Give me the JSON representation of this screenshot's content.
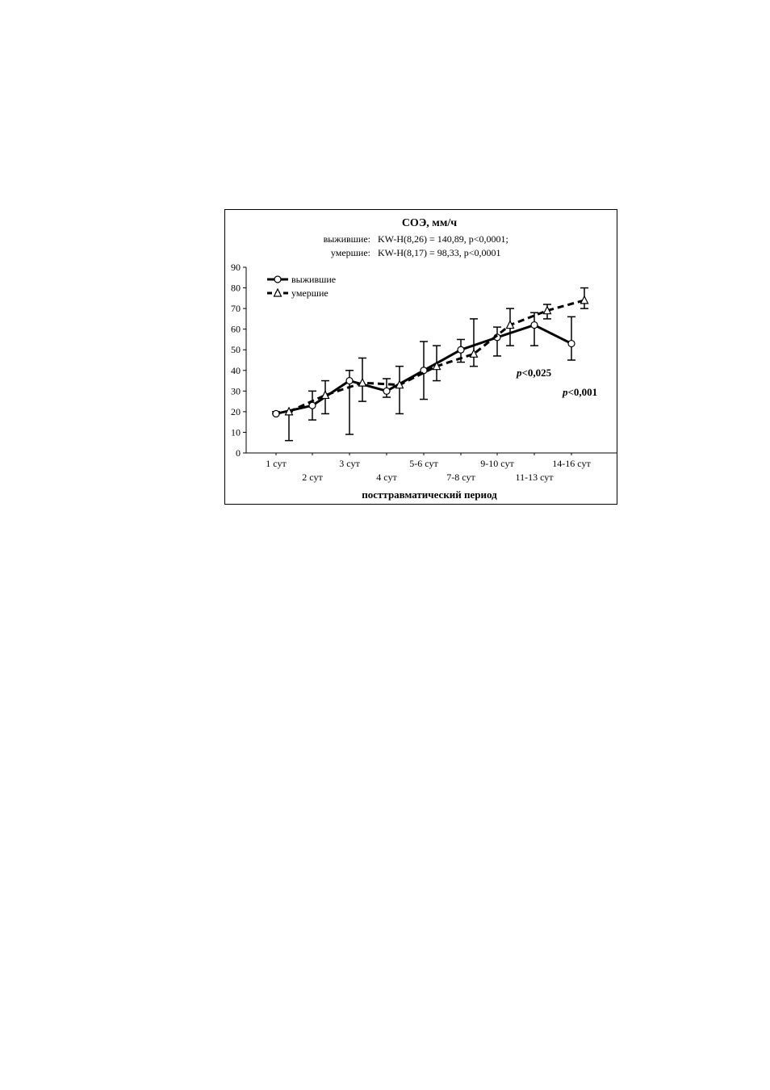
{
  "chart_data": {
    "type": "line",
    "title": "СОЭ, мм/ч",
    "subtitle_lines": [
      {
        "label": "выжившие:",
        "stat": "KW-H(8,26) = 140,89, p<0,0001;"
      },
      {
        "label": "умершие:",
        "stat": "KW-H(8,17) = 98,33, p<0,0001"
      }
    ],
    "xlabel": "посттравматический период",
    "ylabel": "",
    "ylim": [
      0,
      90
    ],
    "yticks": [
      0,
      10,
      20,
      30,
      40,
      50,
      60,
      70,
      80,
      90
    ],
    "grid": false,
    "legend_position": "top-left",
    "categories": [
      "1 сут",
      "2 сут",
      "3 сут",
      "4 сут",
      "5-6 сут",
      "7-8 сут",
      "9-10 сут",
      "11-13 сут",
      "14-16 сут"
    ],
    "series": [
      {
        "name": "выжившие",
        "marker": "circle",
        "line_style": "solid",
        "color": "#000000",
        "values": [
          19,
          23,
          35,
          30,
          40,
          50,
          56,
          62,
          53
        ],
        "lower": [
          19,
          16,
          9,
          27,
          26,
          44,
          47,
          52,
          45
        ],
        "upper": [
          20,
          30,
          40,
          36,
          54,
          55,
          61,
          68,
          66
        ]
      },
      {
        "name": "умершие",
        "marker": "triangle",
        "line_style": "dashed",
        "color": "#000000",
        "values": [
          20,
          28,
          34,
          33,
          42,
          48,
          62,
          69,
          74
        ],
        "lower": [
          6,
          19,
          25,
          19,
          35,
          42,
          52,
          65,
          70
        ],
        "upper": [
          20,
          35,
          46,
          42,
          52,
          65,
          70,
          72,
          80
        ]
      }
    ],
    "annotations": [
      {
        "text_italic": "p",
        "text": "<0,025",
        "near_category": "9-10 сут"
      },
      {
        "text_italic": "p",
        "text": "<0,001",
        "near_category": "14-16 сут"
      }
    ]
  }
}
